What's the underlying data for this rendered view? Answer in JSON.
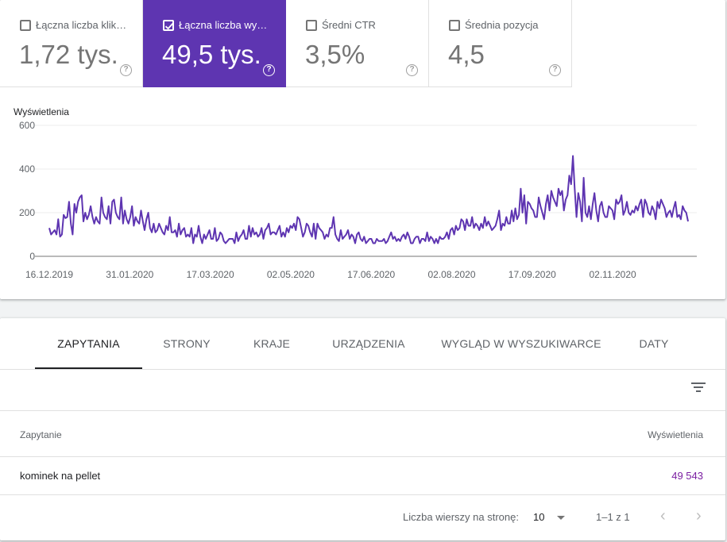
{
  "metrics": [
    {
      "label": "Łączna liczba kliknięć",
      "value": "1,72 tys.",
      "checked": false
    },
    {
      "label": "Łączna liczba wyświetleń",
      "value": "49,5 tys.",
      "checked": true
    },
    {
      "label": "Średni CTR",
      "value": "3,5%",
      "checked": false
    },
    {
      "label": "Średnia pozycja",
      "value": "4,5",
      "checked": false
    }
  ],
  "help_glyph": "?",
  "chart_data": {
    "type": "line",
    "ylabel": "Wyświetlenia",
    "ylim": [
      0,
      600
    ],
    "yticks": [
      "0",
      "200",
      "400",
      "600"
    ],
    "xticks": [
      "16.12.2019",
      "31.01.2020",
      "17.03.2020",
      "02.05.2020",
      "17.06.2020",
      "02.08.2020",
      "17.09.2020",
      "02.11.2020"
    ],
    "line_color": "#5e35b1",
    "series": [
      {
        "values": [
          130,
          100,
          110,
          120,
          100,
          170,
          90,
          100,
          190,
          175,
          180,
          250,
          150,
          100,
          240,
          200,
          250,
          270,
          280,
          160,
          200,
          170,
          190,
          230,
          180,
          150,
          180,
          160,
          150,
          270,
          200,
          180,
          170,
          230,
          150,
          250,
          260,
          200,
          180,
          170,
          270,
          150,
          210,
          170,
          150,
          180,
          230,
          140,
          180,
          160,
          150,
          210,
          160,
          120,
          170,
          200,
          130,
          110,
          150,
          110,
          120,
          150,
          130,
          110,
          100,
          140,
          120,
          180,
          110,
          110,
          120,
          90,
          150,
          100,
          120,
          130,
          90,
          100,
          90,
          130,
          60,
          100,
          90,
          140,
          90,
          60,
          100,
          80,
          100,
          120,
          80,
          80,
          130,
          70,
          80,
          110,
          100,
          70,
          60,
          70,
          80,
          80,
          80,
          60,
          110,
          70,
          90,
          100,
          120,
          80,
          80,
          140,
          90,
          130,
          100,
          110,
          90,
          100,
          130,
          80,
          120,
          130,
          150,
          100,
          110,
          110,
          100,
          120,
          140,
          90,
          110,
          90,
          130,
          110,
          140,
          130,
          150,
          120,
          180,
          170,
          130,
          90,
          110,
          150,
          140,
          110,
          90,
          150,
          80,
          150,
          130,
          120,
          110,
          80,
          100,
          90,
          130,
          130,
          180,
          100,
          80,
          70,
          120,
          80,
          90,
          100,
          120,
          80,
          100,
          90,
          60,
          100,
          110,
          80,
          70,
          90,
          60,
          70,
          80,
          80,
          60,
          60,
          80,
          70,
          70,
          70,
          80,
          60,
          70,
          90,
          110,
          80,
          90,
          70,
          80,
          70,
          90,
          100,
          80,
          110,
          90,
          60,
          60,
          80,
          90,
          90,
          60,
          80,
          80,
          70,
          110,
          70,
          90,
          80,
          60,
          80,
          60,
          90,
          80,
          80,
          90,
          110,
          80,
          120,
          130,
          100,
          140,
          120,
          130,
          170,
          160,
          120,
          170,
          140,
          140,
          180,
          130,
          150,
          140,
          120,
          150,
          130,
          180,
          140,
          160,
          140,
          120,
          130,
          140,
          170,
          210,
          120,
          150,
          140,
          180,
          150,
          150,
          210,
          160,
          220,
          170,
          190,
          310,
          200,
          280,
          150,
          250,
          240,
          220,
          210,
          180,
          180,
          270,
          230,
          200,
          170,
          240,
          280,
          210,
          300,
          270,
          250,
          230,
          310,
          280,
          300,
          210,
          260,
          280,
          370,
          330,
          460,
          310,
          180,
          290,
          250,
          160,
          360,
          200,
          180,
          230,
          170,
          240,
          290,
          210,
          160,
          230,
          250,
          200,
          180,
          180,
          230,
          220,
          210,
          170,
          260,
          240,
          250,
          280,
          190,
          210,
          250,
          200,
          190,
          210,
          200,
          230,
          210,
          240,
          260,
          180,
          260,
          240,
          200,
          190,
          230,
          210,
          170,
          250,
          220,
          260,
          240,
          220,
          180,
          200,
          210,
          180,
          220,
          250,
          180,
          190,
          170,
          230,
          210,
          200,
          160
        ]
      }
    ]
  },
  "tabs": [
    "ZAPYTANIA",
    "STRONY",
    "KRAJE",
    "URZĄDZENIA",
    "WYGLĄD W WYSZUKIWARCE",
    "DATY"
  ],
  "table": {
    "headers": [
      "Zapytanie",
      "Wyświetlenia"
    ],
    "rows": [
      {
        "query": "kominek na pellet",
        "impressions": "49 543"
      }
    ]
  },
  "pagination": {
    "rows_per_page_label": "Liczba wierszy na stronę:",
    "rows_per_page": "10",
    "range": "1–1 z 1",
    "prev": "‹",
    "next": "›"
  }
}
